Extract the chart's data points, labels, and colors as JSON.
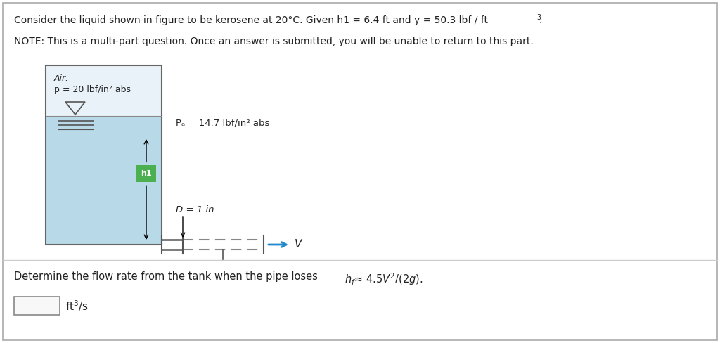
{
  "title_main": "Consider the liquid shown in figure to be kerosene at 20°C. Given h1 = 6.4 ft and y = 50.3 lbf / ft",
  "title_sup": "3",
  "note_line": "NOTE: This is a multi-part question. Once an answer is submitted, you will be unable to return to this part.",
  "air_label": "Air:",
  "air_pressure": "p = 20 lbf/in² abs",
  "pa_label": "Pₐ = 14.7 lbf/in² abs",
  "diameter_label": "D = 1 in",
  "h1_label": "h1",
  "v_label": "V",
  "question_text": "Determine the flow rate from the tank when the pipe loses ",
  "hf_text": "hₑ≈ 4.5V²/(2g).",
  "answer_unit": "ft³/s",
  "tank_fill_color": "#b8d9e8",
  "air_fill_color": "#e8f2f8",
  "tank_border_color": "#666666",
  "h1_box_color": "#4caf50",
  "h1_text_color": "#ffffff",
  "background_color": "#ffffff",
  "border_color": "#aaaaaa",
  "pipe_dash_color": "#888888",
  "arrow_color": "#2288cc",
  "text_color": "#222222"
}
